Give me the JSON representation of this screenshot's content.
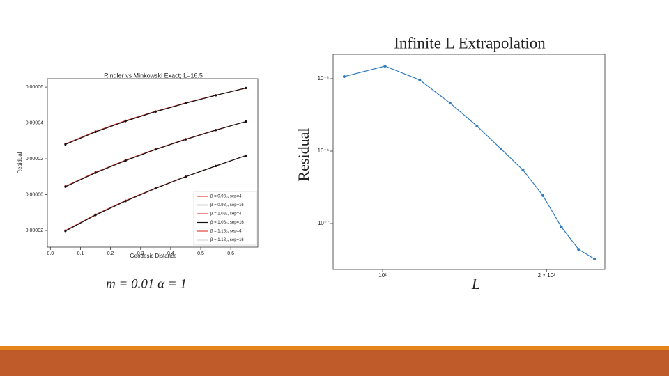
{
  "chart_data": [
    {
      "type": "line",
      "title": "Rindler vs Minkowski Exact; L=16.5",
      "x_label": "Geodesic Distance",
      "y_label": "Residual",
      "annotation": "m = 0.01   α = 1",
      "x": [
        0.05,
        0.15,
        0.25,
        0.35,
        0.45,
        0.55,
        0.65
      ],
      "series": [
        {
          "name": "β = 0.9β₀, sep=4",
          "color": "#e0413a",
          "values": [
            2.83e-05,
            3.53e-05,
            4.13e-05,
            4.65e-05,
            5.12e-05,
            5.55e-05,
            5.94e-05
          ]
        },
        {
          "name": "β = 0.9β₀, sep=16",
          "color": "#111111",
          "values": [
            2.8e-05,
            3.5e-05,
            4.1e-05,
            4.63e-05,
            5.1e-05,
            5.54e-05,
            5.95e-05
          ]
        },
        {
          "name": "β = 1.0β₀, sep=4",
          "color": "#e0413a",
          "values": [
            4.7e-06,
            1.25e-05,
            1.93e-05,
            2.54e-05,
            3.1e-05,
            3.61e-05,
            4.08e-05
          ]
        },
        {
          "name": "β = 1.0β₀, sep=16",
          "color": "#111111",
          "values": [
            4.4e-06,
            1.22e-05,
            1.9e-05,
            2.52e-05,
            3.08e-05,
            3.6e-05,
            4.08e-05
          ]
        },
        {
          "name": "β = 1.1β₀, sep=4",
          "color": "#e0413a",
          "values": [
            -2e-05,
            -1.11e-05,
            -3.3e-06,
            3.7e-06,
            1.01e-05,
            1.6e-05,
            2.18e-05
          ]
        },
        {
          "name": "β = 1.1β₀, sep=16",
          "color": "#111111",
          "values": [
            -2.03e-05,
            -1.14e-05,
            -3.6e-06,
            3.5e-06,
            1e-05,
            1.6e-05,
            2.18e-05
          ]
        }
      ],
      "xlim": [
        -0.01,
        0.69
      ],
      "xticks": [
        {
          "value": 0,
          "label": "0.0"
        },
        0.1,
        0.2,
        0.3,
        0.4,
        0.5,
        0.6
      ],
      "ylim": [
        -2.93e-05,
        6.47e-05
      ],
      "yticks": [
        {
          "value": -2e-05,
          "label": "−0.00002"
        },
        {
          "value": 0,
          "label": "0.00000"
        },
        2e-05,
        4e-05,
        6e-05
      ],
      "legend": "lower right"
    },
    {
      "type": "line",
      "title": "Infinite L Extrapolation",
      "x_label": "L",
      "y_label": "Residual",
      "x": [
        85,
        101,
        117,
        133,
        149,
        165,
        181,
        197,
        213,
        229,
        245
      ],
      "values": [
        1.07e-05,
        1.49e-05,
        9.6e-06,
        4.6e-06,
        2.22e-06,
        1.07e-06,
        5.5e-07,
        2.43e-07,
        8.95e-08,
        4.4e-08,
        3.24e-08
      ],
      "color": "#2f7bbf",
      "xscale": "log",
      "yscale": "log",
      "xlim": [
        81.1,
        256
      ],
      "xticks": [
        {
          "value": 100,
          "label": "10²"
        },
        {
          "value": 200,
          "label": "2 × 10²"
        }
      ],
      "ylim": [
        2.32e-08,
        2.17e-05
      ],
      "yticks": [
        {
          "value": 1e-07,
          "label": "10⁻⁷"
        },
        {
          "value": 1e-06,
          "label": "10⁻⁶"
        },
        {
          "value": 1e-05,
          "label": "10⁻⁵"
        }
      ]
    }
  ]
}
